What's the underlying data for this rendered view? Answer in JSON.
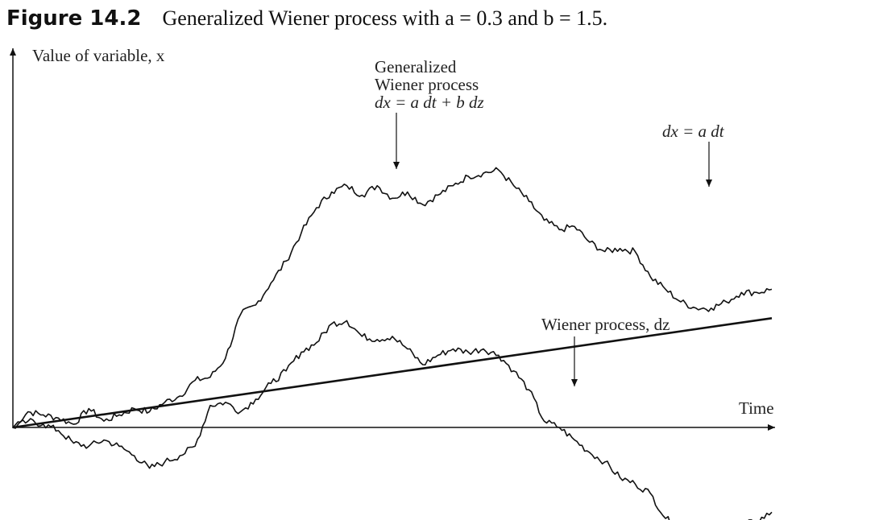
{
  "figure": {
    "label": "Figure 14.2",
    "caption": "Generalized Wiener process with a = 0.3 and b = 1.5."
  },
  "chart_data": {
    "type": "line",
    "title": "Generalized Wiener process with a = 0.3 and b = 1.5.",
    "xlabel": "Time",
    "ylabel": "Value of variable, x",
    "params": {
      "a": 0.3,
      "b": 1.5
    },
    "grid": false,
    "axes_have_ticks": false,
    "series": [
      {
        "name": "dx = a dt",
        "x": [
          0,
          100
        ],
        "y": [
          0,
          34.8
        ]
      },
      {
        "name": "Generalized Wiener process dx = a dt + b dz",
        "x": [
          0,
          2,
          4,
          6,
          8,
          10,
          12,
          14,
          16,
          18,
          20,
          22,
          24,
          26,
          28,
          30,
          32,
          34,
          36,
          38,
          40,
          42,
          44,
          46,
          48,
          50,
          52,
          54,
          56,
          58,
          60,
          62,
          64,
          66,
          68,
          70,
          72,
          74,
          76,
          78,
          80,
          82,
          84,
          86,
          88,
          90,
          92,
          94,
          96,
          98,
          100
        ],
        "y": [
          0,
          5,
          4,
          3,
          1,
          6,
          2,
          4,
          6,
          5,
          8,
          10,
          15,
          16,
          22,
          36,
          39,
          46,
          53,
          62,
          70,
          75,
          77,
          74,
          77,
          73,
          75,
          71,
          74,
          77,
          80,
          81,
          82,
          77,
          72,
          66,
          63,
          64,
          59,
          56,
          57,
          56,
          48,
          44,
          40,
          38,
          38,
          40,
          43,
          43,
          44
        ]
      },
      {
        "name": "Wiener process, dz",
        "x": [
          0,
          2,
          4,
          6,
          8,
          10,
          12,
          14,
          16,
          18,
          20,
          22,
          24,
          26,
          28,
          30,
          32,
          34,
          36,
          38,
          40,
          42,
          44,
          46,
          48,
          50,
          52,
          54,
          56,
          58,
          60,
          62,
          64,
          66,
          68,
          70,
          72,
          74,
          76,
          78,
          80,
          82,
          84,
          86,
          88,
          90,
          92,
          94,
          96,
          98,
          100
        ],
        "y": [
          0,
          2,
          1,
          -1,
          -5,
          -6,
          -4,
          -6,
          -9,
          -13,
          -11,
          -9,
          -6,
          7,
          8,
          5,
          9,
          14,
          18,
          24,
          27,
          33,
          34,
          29,
          28,
          29,
          25,
          20,
          23,
          25,
          24,
          25,
          23,
          18,
          12,
          2,
          0,
          -4,
          -8,
          -11,
          -16,
          -18,
          -21,
          -29,
          -32,
          -36,
          -35,
          -32,
          -31,
          -30,
          -27
        ]
      }
    ],
    "annotations": [
      {
        "lines": [
          "Generalized",
          "Wiener process"
        ],
        "formula": "dx = a dt + b dz"
      },
      {
        "formula": "dx = a dt"
      },
      {
        "text": "Wiener process, dz"
      }
    ]
  }
}
